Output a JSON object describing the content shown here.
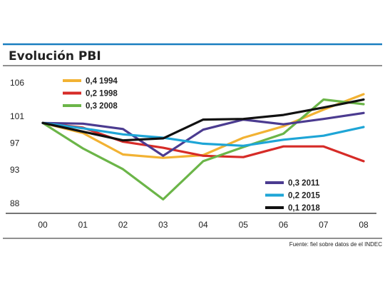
{
  "chart_data": {
    "type": "line",
    "title": "Evolución PBI",
    "source": "Fuente: fiel sobre datos de el INDEC",
    "x": [
      "00",
      "01",
      "02",
      "03",
      "04",
      "05",
      "06",
      "07",
      "08"
    ],
    "yticks": [
      "106",
      "101",
      "97",
      "93",
      "88"
    ],
    "ylim": [
      86,
      107.5
    ],
    "grid": false,
    "legend_placement": [
      "top-left",
      "bottom-right"
    ],
    "series": [
      {
        "name": "0,4 1994",
        "color": "#f2b233",
        "values": [
          100,
          98.5,
          95.3,
          94.8,
          95.2,
          97.8,
          99.5,
          102,
          104.3
        ]
      },
      {
        "name": "0,2 1998",
        "color": "#d62b27",
        "values": [
          100,
          99.3,
          97.2,
          96.3,
          95.1,
          94.9,
          96.5,
          96.5,
          94.3
        ]
      },
      {
        "name": "0,3 2008",
        "color": "#6bb548",
        "values": [
          100,
          96.2,
          93.1,
          88.6,
          94.3,
          96.4,
          98.4,
          103.5,
          102.8
        ]
      },
      {
        "name": "0,3 2011",
        "color": "#4b3b90",
        "values": [
          100,
          99.9,
          99.1,
          95.1,
          99.0,
          100.5,
          99.8,
          100.6,
          101.5
        ]
      },
      {
        "name": "0,2 2015",
        "color": "#1ea5d6",
        "values": [
          100,
          99.2,
          98.3,
          97.8,
          96.9,
          96.6,
          97.5,
          98.1,
          99.4
        ]
      },
      {
        "name": "0,1 2018",
        "color": "#111111",
        "values": [
          100,
          98.7,
          97.4,
          97.7,
          100.5,
          100.6,
          101.2,
          102.3,
          103.5
        ]
      }
    ]
  }
}
